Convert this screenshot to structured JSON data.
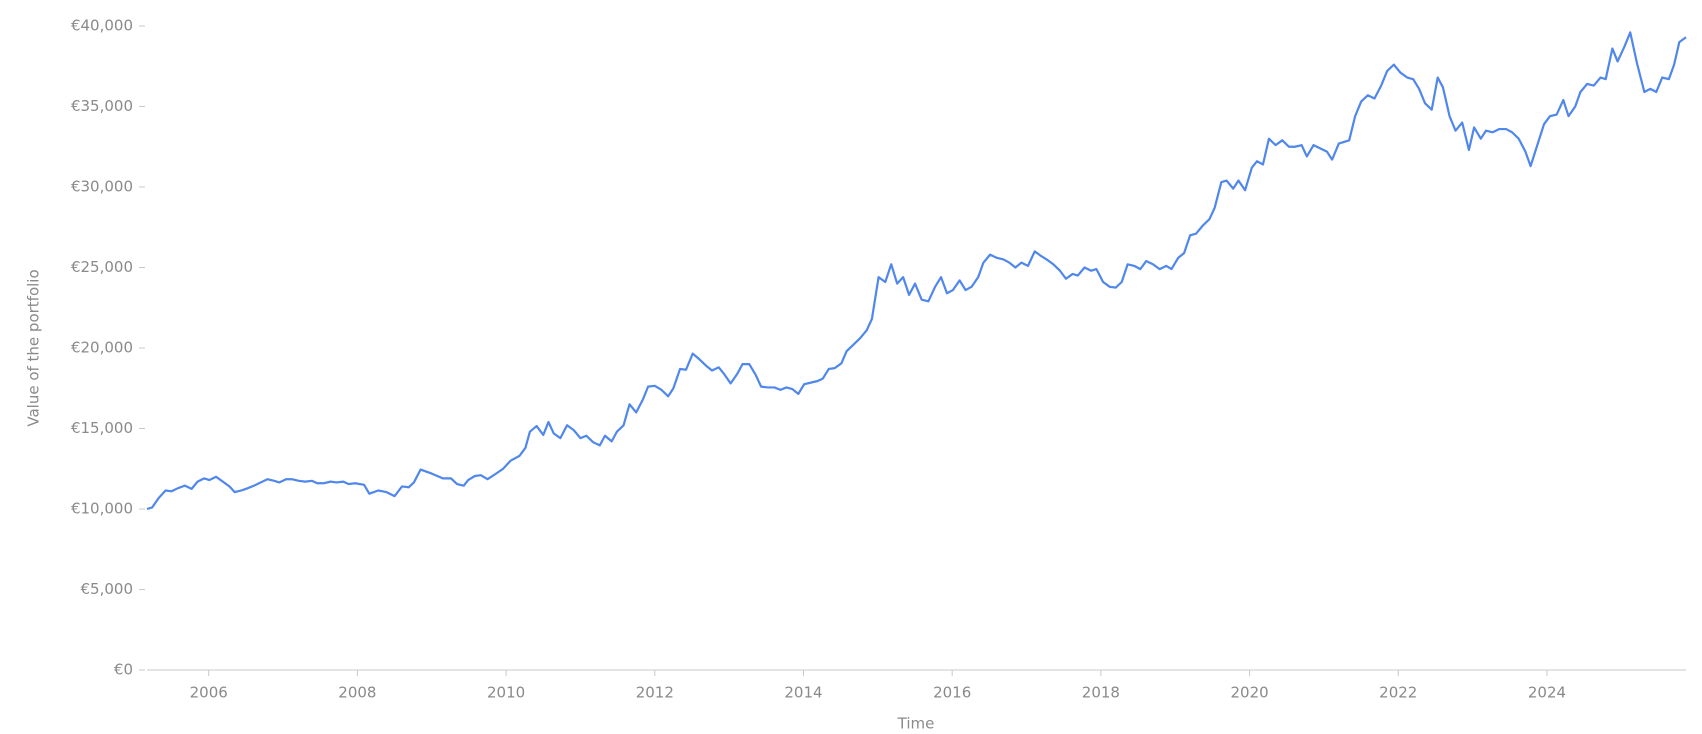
{
  "chart_data": {
    "type": "line",
    "x_label": "Time",
    "y_label": "Value of the portfolio",
    "x": [
      2005.17,
      2005.24,
      2005.33,
      2005.42,
      2005.5,
      2005.59,
      2005.68,
      2005.77,
      2005.85,
      2005.94,
      2006.01,
      2006.1,
      2006.19,
      2006.28,
      2006.35,
      2006.44,
      2006.53,
      2006.61,
      2006.7,
      2006.79,
      2006.88,
      2006.95,
      2007.04,
      2007.12,
      2007.21,
      2007.3,
      2007.39,
      2007.46,
      2007.55,
      2007.64,
      2007.72,
      2007.81,
      2007.88,
      2007.97,
      2008.09,
      2008.16,
      2008.28,
      2008.39,
      2008.5,
      2008.6,
      2008.69,
      2008.76,
      2008.85,
      2009.0,
      2009.15,
      2009.26,
      2009.34,
      2009.43,
      2009.49,
      2009.58,
      2009.66,
      2009.75,
      2009.85,
      2009.96,
      2010.06,
      2010.18,
      2010.26,
      2010.32,
      2010.41,
      2010.5,
      2010.57,
      2010.64,
      2010.73,
      2010.82,
      2010.91,
      2011.0,
      2011.08,
      2011.17,
      2011.26,
      2011.33,
      2011.42,
      2011.49,
      2011.58,
      2011.66,
      2011.75,
      2011.84,
      2011.91,
      2012.0,
      2012.09,
      2012.18,
      2012.25,
      2012.34,
      2012.42,
      2012.51,
      2012.6,
      2012.69,
      2012.77,
      2012.86,
      2012.93,
      2013.02,
      2013.11,
      2013.18,
      2013.27,
      2013.36,
      2013.43,
      2013.52,
      2013.61,
      2013.69,
      2013.77,
      2013.85,
      2013.93,
      2014.01,
      2014.1,
      2014.19,
      2014.26,
      2014.34,
      2014.42,
      2014.51,
      2014.58,
      2014.67,
      2014.76,
      2014.85,
      2014.92,
      2015.01,
      2015.1,
      2015.18,
      2015.26,
      2015.34,
      2015.42,
      2015.5,
      2015.59,
      2015.68,
      2015.77,
      2015.85,
      2015.93,
      2016.01,
      2016.1,
      2016.18,
      2016.26,
      2016.35,
      2016.42,
      2016.51,
      2016.6,
      2016.69,
      2016.77,
      2016.85,
      2016.93,
      2017.02,
      2017.11,
      2017.2,
      2017.27,
      2017.36,
      2017.45,
      2017.53,
      2017.62,
      2017.69,
      2017.78,
      2017.87,
      2017.94,
      2018.03,
      2018.12,
      2018.2,
      2018.28,
      2018.36,
      2018.45,
      2018.53,
      2018.61,
      2018.7,
      2018.79,
      2018.88,
      2018.95,
      2019.04,
      2019.12,
      2019.2,
      2019.28,
      2019.37,
      2019.46,
      2019.53,
      2019.62,
      2019.69,
      2019.78,
      2019.85,
      2019.94,
      2020.03,
      2020.1,
      2020.18,
      2020.26,
      2020.35,
      2020.44,
      2020.53,
      2020.61,
      2020.7,
      2020.77,
      2020.86,
      2020.95,
      2021.04,
      2021.11,
      2021.2,
      2021.27,
      2021.34,
      2021.42,
      2021.5,
      2021.59,
      2021.68,
      2021.77,
      2021.85,
      2021.94,
      2022.03,
      2022.12,
      2022.2,
      2022.28,
      2022.36,
      2022.45,
      2022.53,
      2022.6,
      2022.69,
      2022.77,
      2022.86,
      2022.95,
      2023.02,
      2023.11,
      2023.18,
      2023.27,
      2023.36,
      2023.45,
      2023.53,
      2023.62,
      2023.71,
      2023.78,
      2023.87,
      2023.96,
      2024.04,
      2024.13,
      2024.22,
      2024.29,
      2024.38,
      2024.45,
      2024.54,
      2024.63,
      2024.72,
      2024.79,
      2024.88,
      2024.95,
      2025.04,
      2025.12,
      2025.21,
      2025.31,
      2025.39,
      2025.47,
      2025.55,
      2025.64,
      2025.71,
      2025.78,
      2025.87
    ],
    "series": [
      {
        "color": "#4f87ec",
        "values": [
          10000,
          10100,
          10700,
          11150,
          11100,
          11300,
          11450,
          11250,
          11700,
          11900,
          11800,
          12000,
          11700,
          11400,
          11050,
          11150,
          11300,
          11450,
          11650,
          11850,
          11750,
          11650,
          11850,
          11850,
          11750,
          11700,
          11750,
          11600,
          11600,
          11700,
          11650,
          11700,
          11550,
          11600,
          11500,
          10950,
          11150,
          11050,
          10800,
          11400,
          11350,
          11650,
          12450,
          12200,
          11900,
          11900,
          11550,
          11450,
          11800,
          12050,
          12100,
          11850,
          12150,
          12500,
          13000,
          13300,
          13800,
          14800,
          15150,
          14600,
          15400,
          14700,
          14400,
          15200,
          14900,
          14400,
          14550,
          14150,
          13950,
          14550,
          14200,
          14800,
          15200,
          16500,
          16000,
          16800,
          17600,
          17650,
          17400,
          17000,
          17500,
          18700,
          18650,
          19650,
          19300,
          18900,
          18600,
          18800,
          18400,
          17800,
          18400,
          19000,
          19000,
          18300,
          17600,
          17550,
          17550,
          17400,
          17550,
          17450,
          17150,
          17750,
          17850,
          17950,
          18100,
          18700,
          18750,
          19050,
          19800,
          20200,
          20600,
          21100,
          21800,
          24400,
          24100,
          25200,
          24000,
          24400,
          23300,
          24000,
          23000,
          22900,
          23800,
          24400,
          23400,
          23600,
          24200,
          23600,
          23800,
          24400,
          25300,
          25800,
          25600,
          25500,
          25300,
          25000,
          25300,
          25100,
          26000,
          25700,
          25500,
          25200,
          24800,
          24300,
          24600,
          24500,
          25000,
          24800,
          24900,
          24100,
          23800,
          23750,
          24100,
          25200,
          25100,
          24900,
          25400,
          25200,
          24900,
          25100,
          24900,
          25600,
          25900,
          27000,
          27100,
          27600,
          28000,
          28700,
          30300,
          30400,
          29900,
          30400,
          29800,
          31200,
          31600,
          31400,
          33000,
          32600,
          32900,
          32500,
          32500,
          32600,
          31900,
          32600,
          32400,
          32200,
          31700,
          32700,
          32800,
          32900,
          34400,
          35300,
          35700,
          35500,
          36300,
          37200,
          37600,
          37100,
          36800,
          36700,
          36100,
          35200,
          34800,
          36800,
          36200,
          34400,
          33500,
          34000,
          32300,
          33700,
          33000,
          33500,
          33400,
          33600,
          33600,
          33400,
          33000,
          32200,
          31300,
          32600,
          33900,
          34400,
          34500,
          35400,
          34400,
          35000,
          35900,
          36400,
          36300,
          36800,
          36700,
          38600,
          37800,
          38700,
          39600,
          37700,
          35900,
          36100,
          35900,
          36800,
          36700,
          37600,
          39000,
          39300
        ]
      }
    ],
    "xlim": [
      2005.17,
      2025.87
    ],
    "xticks": [
      2006,
      2008,
      2010,
      2012,
      2014,
      2016,
      2018,
      2020,
      2022,
      2024
    ],
    "ylim": [
      0,
      40000
    ],
    "yticks": [
      {
        "value": 0,
        "label": "€0"
      },
      {
        "value": 5000,
        "label": "€5,000"
      },
      {
        "value": 10000,
        "label": "€10,000"
      },
      {
        "value": 15000,
        "label": "€15,000"
      },
      {
        "value": 20000,
        "label": "€20,000"
      },
      {
        "value": 25000,
        "label": "€25,000"
      },
      {
        "value": 30000,
        "label": "€30,000"
      },
      {
        "value": 35000,
        "label": "€35,000"
      },
      {
        "value": 40000,
        "label": "€40,000"
      }
    ],
    "grid": false
  }
}
